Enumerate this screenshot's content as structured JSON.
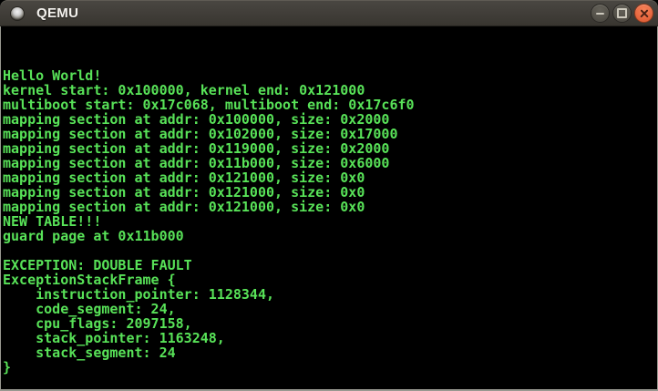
{
  "window": {
    "title": "QEMU"
  },
  "window_controls": {
    "minimize": "minimize",
    "maximize": "maximize",
    "close": "close"
  },
  "terminal": {
    "lines": [
      "Hello World!",
      "kernel start: 0x100000, kernel end: 0x121000",
      "multiboot start: 0x17c068, multiboot end: 0x17c6f0",
      "mapping section at addr: 0x100000, size: 0x2000",
      "mapping section at addr: 0x102000, size: 0x17000",
      "mapping section at addr: 0x119000, size: 0x2000",
      "mapping section at addr: 0x11b000, size: 0x6000",
      "mapping section at addr: 0x121000, size: 0x0",
      "mapping section at addr: 0x121000, size: 0x0",
      "mapping section at addr: 0x121000, size: 0x0",
      "NEW TABLE!!!",
      "guard page at 0x11b000",
      "",
      "EXCEPTION: DOUBLE FAULT",
      "ExceptionStackFrame {",
      "    instruction_pointer: 1128344,",
      "    code_segment: 24,",
      "    cpu_flags: 2097158,",
      "    stack_pointer: 1163248,",
      "    stack_segment: 24",
      "}"
    ]
  },
  "colors": {
    "text_green": "#58e258",
    "terminal_bg": "#000000",
    "titlebar_top": "#4a4742",
    "titlebar_bottom": "#38352f",
    "frame_border": "#989890",
    "close_orange": "#e96a42",
    "button_gray": "#56534b"
  }
}
